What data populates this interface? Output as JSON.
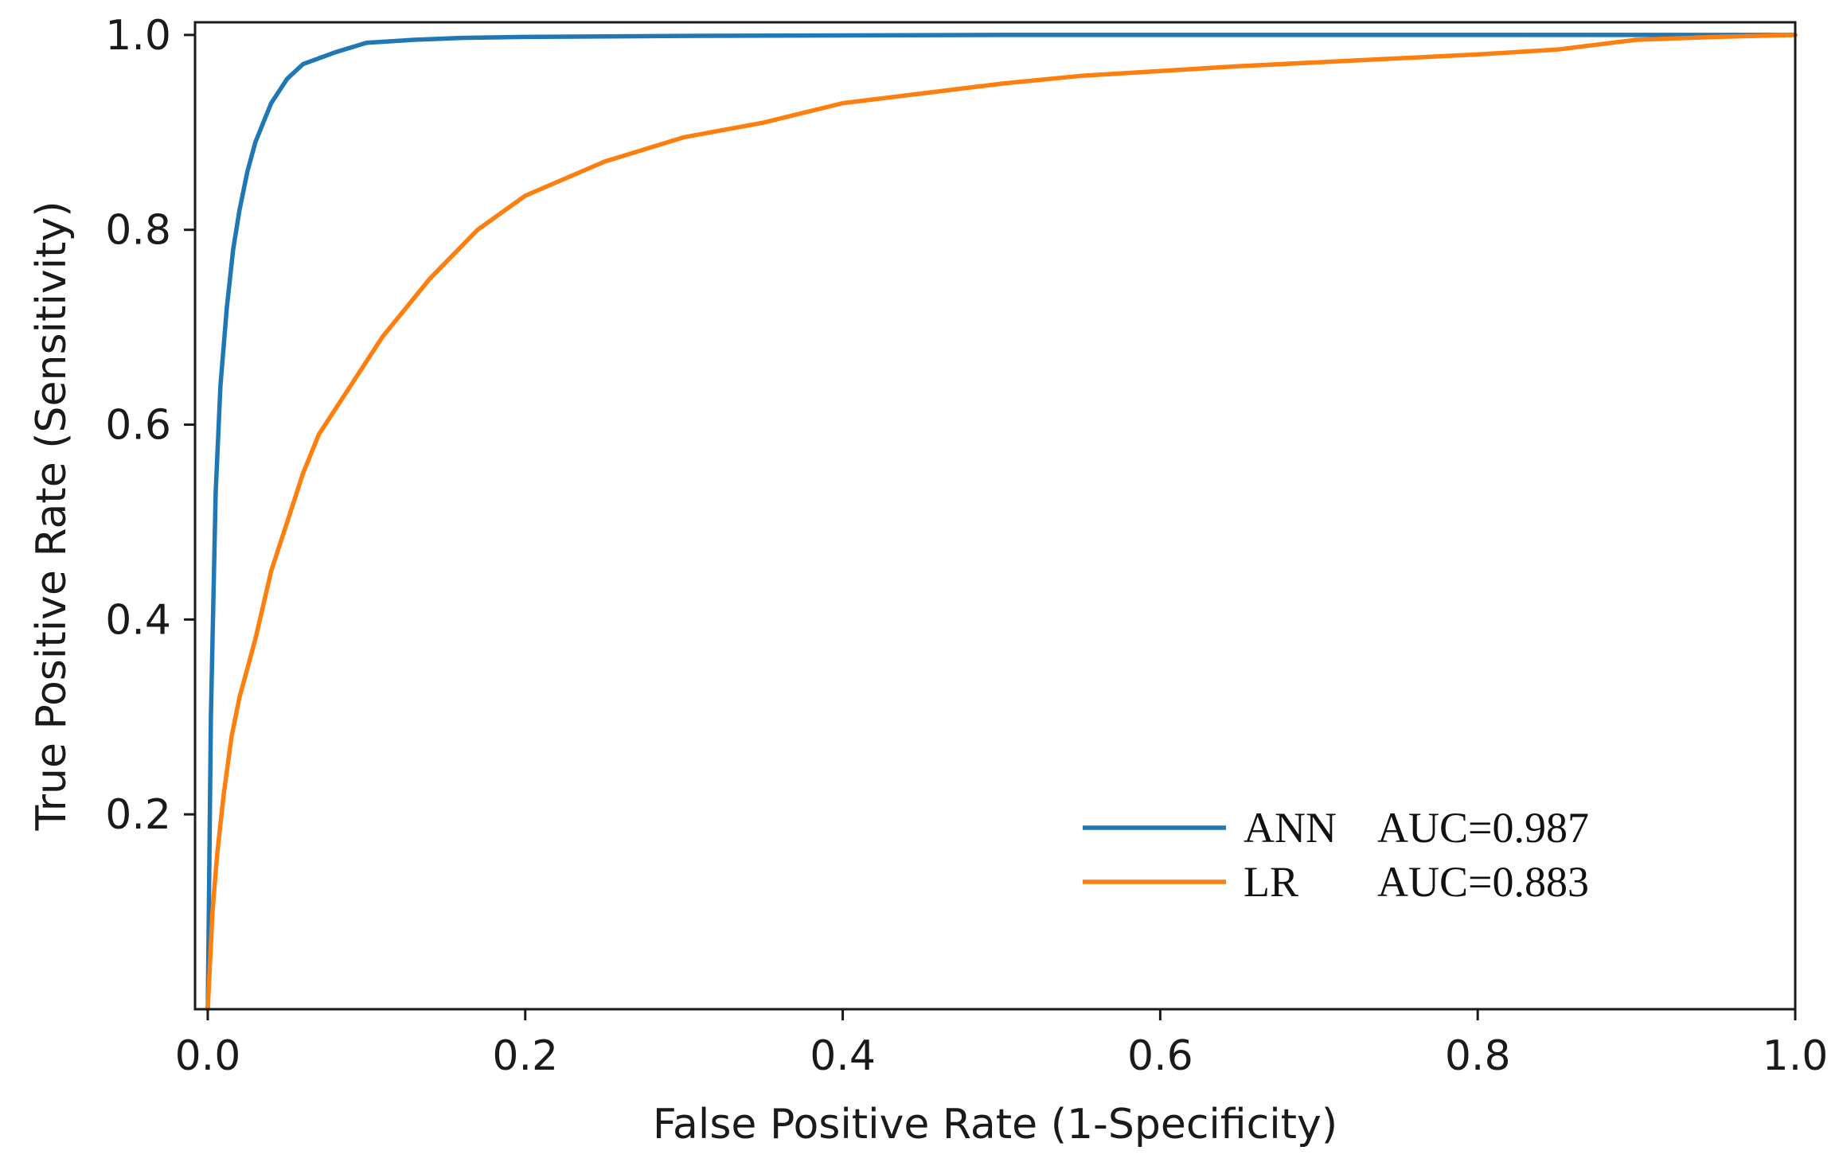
{
  "chart_data": {
    "type": "line",
    "xlabel": "False Positive Rate (1-Specificity)",
    "ylabel": "True Positive Rate (Sensitivity)",
    "xlim": [
      -0.008,
      1.0
    ],
    "ylim": [
      0.0,
      1.013
    ],
    "xticks": [
      0.0,
      0.2,
      0.4,
      0.6,
      0.8,
      1.0
    ],
    "xtick_labels": [
      "0.0",
      "0.2",
      "0.4",
      "0.6",
      "0.8",
      "1.0"
    ],
    "yticks": [
      0.2,
      0.4,
      0.6,
      0.8,
      1.0
    ],
    "ytick_labels": [
      "0.2",
      "0.4",
      "0.6",
      "0.8",
      "1.0"
    ],
    "grid": false,
    "legend_position": "bottom-right",
    "series": [
      {
        "name": "ANN",
        "legend_name": "ANN",
        "legend_auc": "AUC=0.987",
        "color": "#1f77b4",
        "x": [
          0.0,
          0.002,
          0.005,
          0.008,
          0.012,
          0.016,
          0.02,
          0.025,
          0.03,
          0.035,
          0.04,
          0.05,
          0.06,
          0.08,
          0.1,
          0.13,
          0.16,
          0.2,
          0.3,
          0.5,
          0.7,
          1.0
        ],
        "y": [
          0.0,
          0.3,
          0.53,
          0.64,
          0.72,
          0.78,
          0.82,
          0.86,
          0.89,
          0.91,
          0.93,
          0.955,
          0.97,
          0.982,
          0.992,
          0.995,
          0.997,
          0.998,
          0.999,
          1.0,
          1.0,
          1.0
        ]
      },
      {
        "name": "LR",
        "legend_name": "LR",
        "legend_auc": "AUC=0.883",
        "color": "#ff7f0e",
        "x": [
          0.0,
          0.003,
          0.006,
          0.01,
          0.015,
          0.02,
          0.03,
          0.04,
          0.05,
          0.06,
          0.07,
          0.09,
          0.11,
          0.14,
          0.17,
          0.2,
          0.25,
          0.3,
          0.35,
          0.4,
          0.45,
          0.5,
          0.55,
          0.6,
          0.65,
          0.7,
          0.75,
          0.8,
          0.85,
          0.9,
          0.95,
          1.0
        ],
        "y": [
          0.0,
          0.1,
          0.16,
          0.22,
          0.28,
          0.32,
          0.38,
          0.45,
          0.5,
          0.55,
          0.59,
          0.64,
          0.69,
          0.75,
          0.8,
          0.835,
          0.87,
          0.895,
          0.91,
          0.93,
          0.94,
          0.95,
          0.958,
          0.963,
          0.968,
          0.972,
          0.976,
          0.98,
          0.985,
          0.995,
          0.998,
          1.0
        ]
      }
    ]
  }
}
